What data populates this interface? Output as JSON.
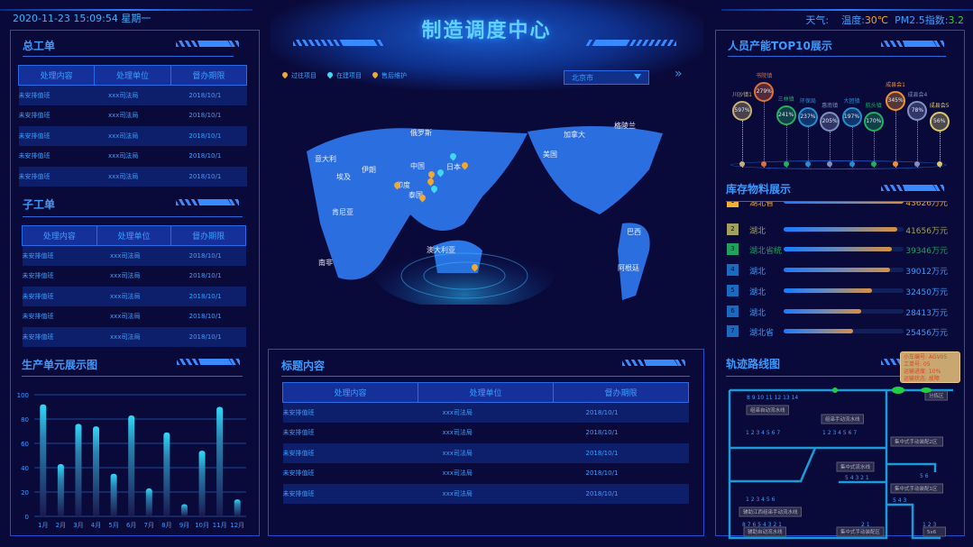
{
  "header": {
    "datetime": "2020-11-23 15:09:54 星期一",
    "title": "制造调度中心",
    "weather_label": "天气:",
    "temp_label": "温度:",
    "temp_value": "30℃",
    "pm_label": "PM2.5指数:",
    "pm_value": "3.2"
  },
  "colors": {
    "accent": "#3a9aff",
    "temp": "#f0a030",
    "pm": "#30d030",
    "background": "#0a0a3a"
  },
  "total_orders": {
    "title": "总工单",
    "columns": [
      "处理内容",
      "处理单位",
      "督办期限"
    ],
    "rows": [
      [
        "未安排值班",
        "xxx司法局",
        "2018/10/1"
      ],
      [
        "未安排值班",
        "xxx司法局",
        "2018/10/1"
      ],
      [
        "未安排值班",
        "xxx司法局",
        "2018/10/1"
      ],
      [
        "未安排值班",
        "xxx司法局",
        "2018/10/1"
      ],
      [
        "未安排值班",
        "xxx司法局",
        "2018/10/1"
      ]
    ]
  },
  "sub_orders": {
    "title": "子工单",
    "columns": [
      "处理内容",
      "处理单位",
      "督办期限"
    ],
    "rows": [
      [
        "未安排值班",
        "xxx司法局",
        "2018/10/1"
      ],
      [
        "未安排值班",
        "xxx司法局",
        "2018/10/1"
      ],
      [
        "未安排值班",
        "xxx司法局",
        "2018/10/1"
      ],
      [
        "未安排值班",
        "xxx司法局",
        "2018/10/1"
      ],
      [
        "未安排值班",
        "xxx司法局",
        "2018/10/1"
      ]
    ]
  },
  "chart_data": {
    "type": "bar",
    "title": "生产单元展示图",
    "categories": [
      "1月",
      "2月",
      "3月",
      "4月",
      "5月",
      "6月",
      "7月",
      "8月",
      "9月",
      "10月",
      "11月",
      "12月"
    ],
    "values": [
      92,
      43,
      76,
      74,
      35,
      83,
      23,
      69,
      10,
      54,
      90,
      14
    ],
    "ylim": [
      0,
      100
    ],
    "yticks": [
      "0",
      "20",
      "40",
      "60",
      "80",
      "100"
    ],
    "grid": true
  },
  "map": {
    "legend": [
      {
        "label": "过往项目",
        "color": "#f0a830"
      },
      {
        "label": "在建项目",
        "color": "#40d8f0"
      },
      {
        "label": "售后维护",
        "color": "#f0a830"
      }
    ],
    "city_select": "北京市",
    "next_icon": "double-chevron-right-icon",
    "labels": [
      "俄罗斯",
      "加拿大",
      "格陵兰",
      "美国",
      "意大利",
      "伊朗",
      "中国",
      "日本",
      "埃及",
      "印度",
      "泰国",
      "肯尼亚",
      "南非",
      "澳大利亚",
      "巴西",
      "阿根廷"
    ]
  },
  "title_content": {
    "title": "标题内容",
    "columns": [
      "处理内容",
      "处理单位",
      "督办期限"
    ],
    "rows": [
      [
        "未安排值班",
        "xxx司法局",
        "2018/10/1"
      ],
      [
        "未安排值班",
        "xxx司法局",
        "2018/10/1"
      ],
      [
        "未安排值班",
        "xxx司法局",
        "2018/10/1"
      ],
      [
        "未安排值班",
        "xxx司法局",
        "2018/10/1"
      ],
      [
        "未安排值班",
        "xxx司法局",
        "2018/10/1"
      ]
    ]
  },
  "top10": {
    "title": "人员产能TOP10展示",
    "items": [
      {
        "name": "川沙镇1",
        "value": "597%",
        "color": "#c8b070"
      },
      {
        "name": "书院镇",
        "value": "279%",
        "color": "#e0703a"
      },
      {
        "name": "三林镇",
        "value": "241%",
        "color": "#20b060"
      },
      {
        "name": "环保局",
        "value": "237%",
        "color": "#2090d0"
      },
      {
        "name": "惠南镇",
        "value": "205%",
        "color": "#8090c0"
      },
      {
        "name": "大团镇",
        "value": "197%",
        "color": "#2090d0"
      },
      {
        "name": "航头镇",
        "value": "170%",
        "color": "#20b060"
      },
      {
        "name": "成县会1",
        "value": "345%",
        "color": "#f09030"
      },
      {
        "name": "成县会4",
        "value": "78%",
        "color": "#8090c0"
      },
      {
        "name": "成县会5",
        "value": "56%",
        "color": "#d8c870"
      }
    ]
  },
  "inventory": {
    "title": "库存物料展示",
    "items": [
      {
        "rank": "1",
        "name": "湖北省",
        "value": "43626万元",
        "fraction": 1.0,
        "color": "#f0b030"
      },
      {
        "rank": "2",
        "name": "湖北",
        "value": "41656万元",
        "fraction": 0.95,
        "color": "#a0a060"
      },
      {
        "rank": "3",
        "name": "湖北省统",
        "value": "39346万元",
        "fraction": 0.9,
        "color": "#20a060"
      },
      {
        "rank": "4",
        "name": "湖北",
        "value": "39012万元",
        "fraction": 0.89,
        "color": "#1a6ac0"
      },
      {
        "rank": "5",
        "name": "湖北",
        "value": "32450万元",
        "fraction": 0.74,
        "color": "#1a6ac0"
      },
      {
        "rank": "6",
        "name": "湖北",
        "value": "28413万元",
        "fraction": 0.65,
        "color": "#1a6ac0"
      },
      {
        "rank": "7",
        "name": "湖北省",
        "value": "25456万元",
        "fraction": 0.58,
        "color": "#1a6ac0"
      }
    ]
  },
  "track": {
    "title": "轨迹路线图",
    "tooltip": [
      "小车编号: AGV05",
      "工单号: 05",
      "运输进度: 10%",
      "运输状态: 故障"
    ],
    "areas": [
      "组串自动流水线",
      "组串手动流水线",
      "集中式手动装配2区",
      "集中式流水线",
      "集中式手动装配1区",
      "辅助江西组串手动流水线",
      "辅助自动流水线",
      "集中式手动装配区",
      "5x6",
      "分拣区"
    ],
    "stations": [
      "8 9 10 11 12 13 14",
      "1 2 3 4 5 6 7",
      "1 2 3 4 5 6 7",
      "5 6",
      "5 4 3 2 1",
      "1 2 3 4 5 6",
      "5 4 3",
      "8 7 6 5 4 3 2 1",
      "2 1",
      "1 2 3"
    ]
  }
}
